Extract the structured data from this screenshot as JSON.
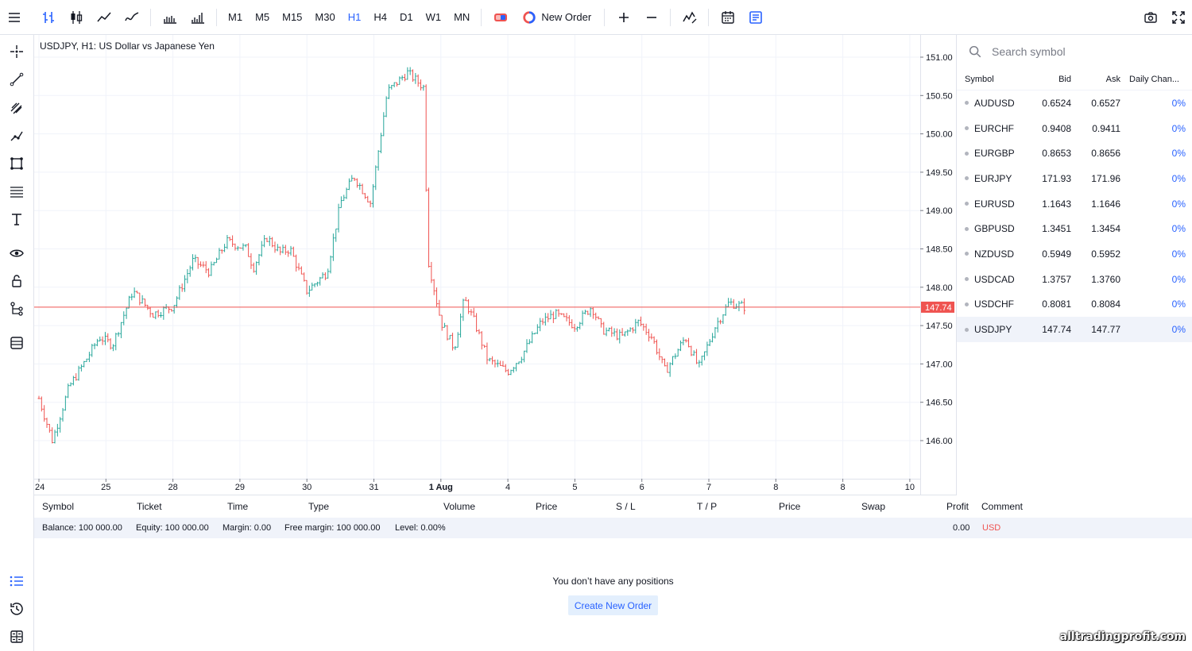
{
  "toolbar": {
    "timeframes": [
      "M1",
      "M5",
      "M15",
      "M30",
      "H1",
      "H4",
      "D1",
      "W1",
      "MN"
    ],
    "active_timeframe": "H1",
    "new_order_label": "New Order"
  },
  "chart": {
    "title": "USDJPY, H1: US Dollar vs Japanese Yen",
    "current_price": "147.74"
  },
  "chart_data": {
    "type": "candlestick",
    "symbol": "USDJPY",
    "timeframe": "H1",
    "title": "USDJPY, H1: US Dollar vs Japanese Yen",
    "y_ticks": [
      "151.00",
      "150.50",
      "150.00",
      "149.50",
      "149.00",
      "148.50",
      "148.00",
      "147.50",
      "147.00",
      "146.50",
      "146.00"
    ],
    "ylim": [
      145.55,
      151.35
    ],
    "x_ticks": [
      "24",
      "25",
      "28",
      "29",
      "30",
      "31",
      "1 Aug",
      "4",
      "5",
      "6",
      "7",
      "8",
      "8",
      "10"
    ],
    "current_price": 147.74,
    "close_path": [
      [
        0,
        146.55
      ],
      [
        0.2,
        146.0
      ],
      [
        0.45,
        146.7
      ],
      [
        0.7,
        147.05
      ],
      [
        0.9,
        147.35
      ],
      [
        1.1,
        147.25
      ],
      [
        1.4,
        147.95
      ],
      [
        1.7,
        147.65
      ],
      [
        2.0,
        147.75
      ],
      [
        2.3,
        148.35
      ],
      [
        2.55,
        148.2
      ],
      [
        2.8,
        148.6
      ],
      [
        3.1,
        148.5
      ],
      [
        3.2,
        148.25
      ],
      [
        3.4,
        148.65
      ],
      [
        3.6,
        148.45
      ],
      [
        3.75,
        148.5
      ],
      [
        4.0,
        147.95
      ],
      [
        4.3,
        148.2
      ],
      [
        4.5,
        149.1
      ],
      [
        4.7,
        149.45
      ],
      [
        4.95,
        149.1
      ],
      [
        5.2,
        150.55
      ],
      [
        5.5,
        150.8
      ],
      [
        5.75,
        150.6
      ],
      [
        5.8,
        148.4
      ],
      [
        6.0,
        147.55
      ],
      [
        6.2,
        147.2
      ],
      [
        6.35,
        147.85
      ],
      [
        6.5,
        147.55
      ],
      [
        6.7,
        147.05
      ],
      [
        7.0,
        146.9
      ],
      [
        7.2,
        147.1
      ],
      [
        7.5,
        147.55
      ],
      [
        7.7,
        147.65
      ],
      [
        8.0,
        147.5
      ],
      [
        8.25,
        147.75
      ],
      [
        8.4,
        147.45
      ],
      [
        8.7,
        147.35
      ],
      [
        8.95,
        147.55
      ],
      [
        9.15,
        147.35
      ],
      [
        9.35,
        146.9
      ],
      [
        9.65,
        147.35
      ],
      [
        9.85,
        146.95
      ],
      [
        10.1,
        147.5
      ],
      [
        10.3,
        147.8
      ],
      [
        10.55,
        147.74
      ]
    ]
  },
  "watchlist": {
    "search_placeholder": "Search symbol",
    "headers": {
      "symbol": "Symbol",
      "bid": "Bid",
      "ask": "Ask",
      "change": "Daily Chan..."
    },
    "rows": [
      {
        "symbol": "AUDUSD",
        "bid": "0.6524",
        "ask": "0.6527",
        "change": "0%"
      },
      {
        "symbol": "EURCHF",
        "bid": "0.9408",
        "ask": "0.9411",
        "change": "0%"
      },
      {
        "symbol": "EURGBP",
        "bid": "0.8653",
        "ask": "0.8656",
        "change": "0%"
      },
      {
        "symbol": "EURJPY",
        "bid": "171.93",
        "ask": "171.96",
        "change": "0%"
      },
      {
        "symbol": "EURUSD",
        "bid": "1.1643",
        "ask": "1.1646",
        "change": "0%"
      },
      {
        "symbol": "GBPUSD",
        "bid": "1.3451",
        "ask": "1.3454",
        "change": "0%"
      },
      {
        "symbol": "NZDUSD",
        "bid": "0.5949",
        "ask": "0.5952",
        "change": "0%"
      },
      {
        "symbol": "USDCAD",
        "bid": "1.3757",
        "ask": "1.3760",
        "change": "0%"
      },
      {
        "symbol": "USDCHF",
        "bid": "0.8081",
        "ask": "0.8084",
        "change": "0%"
      },
      {
        "symbol": "USDJPY",
        "bid": "147.74",
        "ask": "147.77",
        "change": "0%"
      }
    ],
    "selected": "USDJPY"
  },
  "positions": {
    "columns": [
      "Symbol",
      "Ticket",
      "Time",
      "Type",
      "Volume",
      "Price",
      "S / L",
      "T / P",
      "Price",
      "Swap",
      "Profit",
      "Comment"
    ],
    "balance": "Balance: 100 000.00",
    "equity": "Equity: 100 000.00",
    "margin": "Margin: 0.00",
    "free_margin": "Free margin: 100 000.00",
    "level": "Level: 0.00%",
    "profit": "0.00",
    "currency": "USD",
    "empty_message": "You don’t have any positions",
    "create_label": "Create New Order"
  },
  "watermark": "alltradingprofit.com",
  "colors": {
    "up": "#26a69a",
    "down": "#ef5350",
    "accent": "#2962ff",
    "price_line": "#ef5350"
  }
}
